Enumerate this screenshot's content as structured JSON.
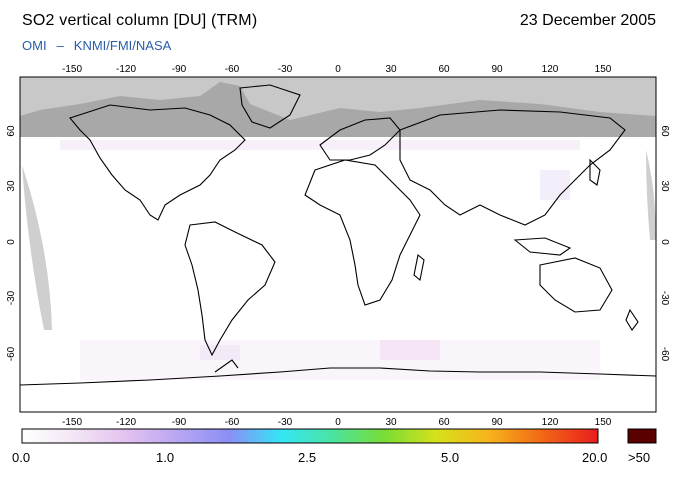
{
  "header": {
    "title": "SO2 vertical column [DU] (TRM)",
    "date": "23 December 2005",
    "credit_left": "OMI",
    "credit_dash": "–",
    "credit_right": "KNMI/FMI/NASA"
  },
  "axes": {
    "lon_ticks": [
      "-150",
      "-120",
      "-90",
      "-60",
      "-30",
      "0",
      "30",
      "60",
      "90",
      "120",
      "150"
    ],
    "lat_ticks": [
      "60",
      "30",
      "0",
      "-30",
      "-60"
    ]
  },
  "colorbar": {
    "labels": [
      "0.0",
      "1.0",
      "2.5",
      "5.0",
      "20.0",
      ">50"
    ],
    "colors": [
      "#ffffff",
      "#f3e6f6",
      "#e3c2ef",
      "#b9a6f2",
      "#8b8ef5",
      "#34e6f6",
      "#4be3a0",
      "#79dd34",
      "#d7e11c",
      "#f7b41c",
      "#f26a16",
      "#e81d1d"
    ],
    "max_color": "#5a0000"
  },
  "colors": {
    "night_region": "#bdbdbd",
    "land_outline": "#000000",
    "credit": "#2a5ca8"
  }
}
